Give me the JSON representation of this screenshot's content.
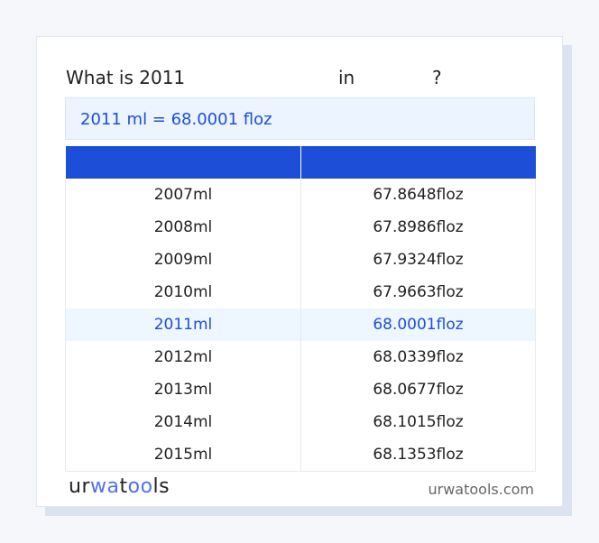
{
  "question": {
    "prefix": "What is 2011",
    "in": "in",
    "suffix": "?"
  },
  "result": "2011 ml = 68.0001 floz",
  "table": {
    "headers": [
      "",
      ""
    ],
    "rows": [
      {
        "ml": "2007ml",
        "floz": "67.8648floz"
      },
      {
        "ml": "2008ml",
        "floz": "67.8986floz"
      },
      {
        "ml": "2009ml",
        "floz": "67.9324floz"
      },
      {
        "ml": "2010ml",
        "floz": "67.9663floz"
      },
      {
        "ml": "2011ml",
        "floz": "68.0001floz",
        "highlighted": true
      },
      {
        "ml": "2012ml",
        "floz": "68.0339floz"
      },
      {
        "ml": "2013ml",
        "floz": "68.0677floz"
      },
      {
        "ml": "2014ml",
        "floz": "68.1015floz"
      },
      {
        "ml": "2015ml",
        "floz": "68.1353floz"
      }
    ]
  },
  "footer": {
    "logo": "urwatools",
    "site": "urwatools.com"
  },
  "colors": {
    "accent": "#1d4ed8",
    "highlight_bg": "#eef6ff"
  }
}
